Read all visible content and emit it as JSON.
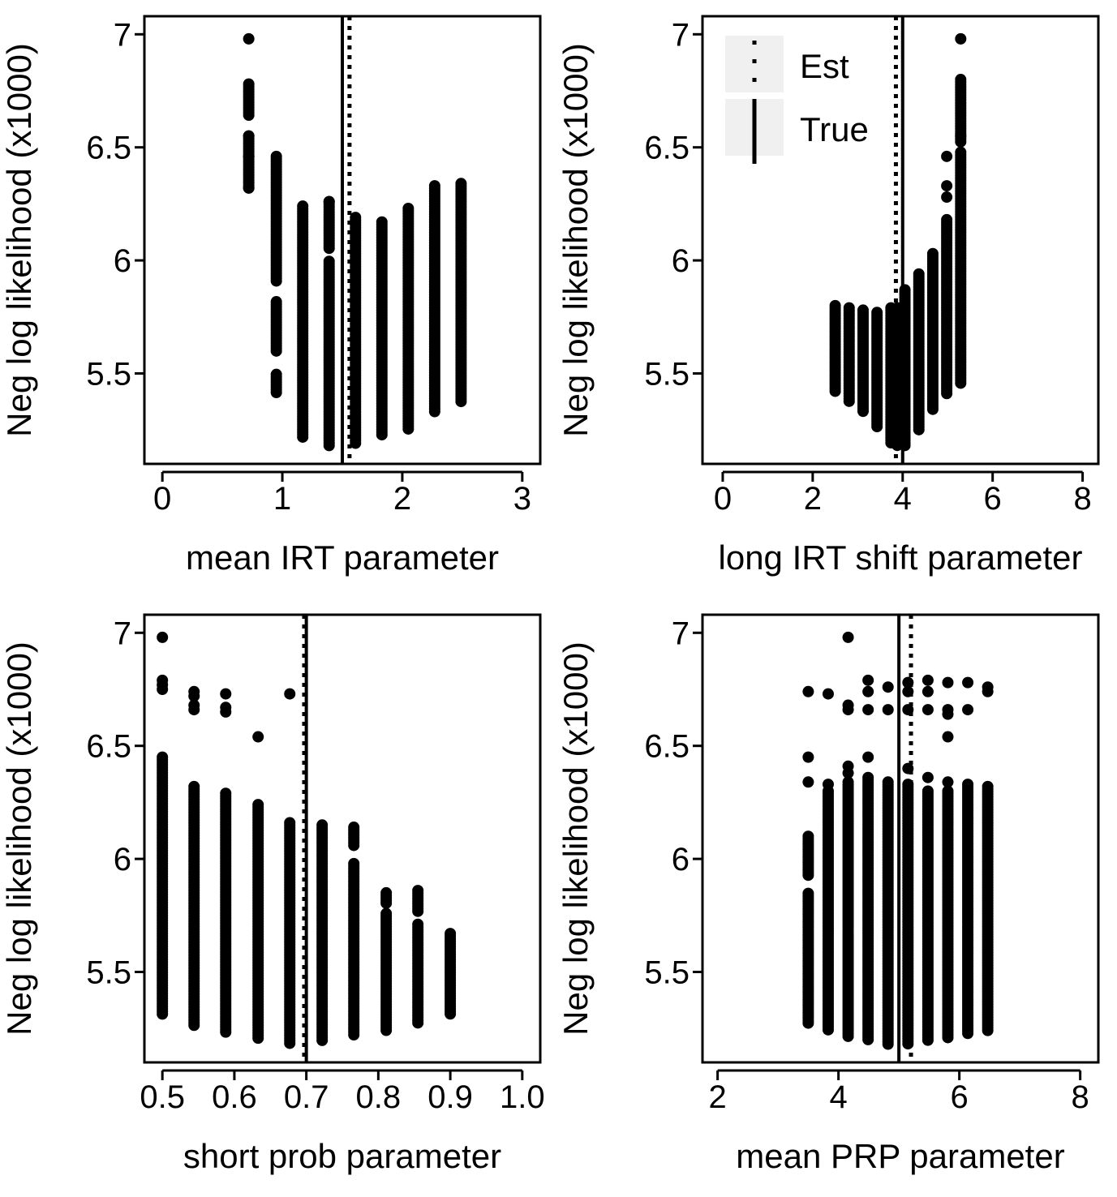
{
  "figure": {
    "background": "#ffffff",
    "ink": "#000000"
  },
  "chart_data": [
    {
      "type": "scatter",
      "xlabel": "mean IRT parameter",
      "ylabel": "Neg log likelihood (x1000)",
      "xlim": [
        -0.15,
        3.15
      ],
      "ylim": [
        5.1,
        7.08
      ],
      "xticks": [
        0,
        1,
        2,
        3
      ],
      "yticks": [
        5.5,
        6,
        6.5,
        7
      ],
      "xtick_labels": [
        "0",
        "1",
        "2",
        "3"
      ],
      "ytick_labels": [
        "5.5",
        "6",
        "6.5",
        "7"
      ],
      "vlines": [
        {
          "name": "True",
          "x": 1.5,
          "style": "solid"
        },
        {
          "name": "Est",
          "x": 1.56,
          "style": "dotted"
        }
      ],
      "columns": [
        {
          "x": 0.72,
          "ymin": 6.32,
          "ymax": 6.78,
          "outliers": [
            6.98,
            6.55,
            6.46,
            6.32
          ],
          "gaps": [
            [
              6.56,
              6.64
            ]
          ]
        },
        {
          "x": 0.95,
          "ymin": 5.41,
          "ymax": 6.46,
          "outliers": [],
          "gaps": [
            [
              5.5,
              5.59
            ],
            [
              5.82,
              5.9
            ]
          ]
        },
        {
          "x": 1.17,
          "ymin": 5.21,
          "ymax": 6.24,
          "outliers": [],
          "gaps": []
        },
        {
          "x": 1.39,
          "ymin": 5.17,
          "ymax": 6.26,
          "outliers": [
            6.26
          ],
          "gaps": [
            [
              6.0,
              6.05
            ]
          ]
        },
        {
          "x": 1.61,
          "ymin": 5.19,
          "ymax": 6.19,
          "outliers": [],
          "gaps": []
        },
        {
          "x": 1.83,
          "ymin": 5.22,
          "ymax": 6.17,
          "outliers": [],
          "gaps": []
        },
        {
          "x": 2.05,
          "ymin": 5.25,
          "ymax": 6.23,
          "outliers": [],
          "gaps": []
        },
        {
          "x": 2.27,
          "ymin": 5.32,
          "ymax": 6.33,
          "outliers": [],
          "gaps": []
        },
        {
          "x": 2.49,
          "ymin": 5.37,
          "ymax": 6.34,
          "outliers": [],
          "gaps": []
        }
      ]
    },
    {
      "type": "scatter",
      "xlabel": "long IRT shift parameter",
      "ylabel": "Neg log likelihood (x1000)",
      "xlim": [
        -0.45,
        8.35
      ],
      "ylim": [
        5.1,
        7.08
      ],
      "xticks": [
        0,
        2,
        4,
        6,
        8
      ],
      "yticks": [
        5.5,
        6,
        6.5,
        7
      ],
      "xtick_labels": [
        "0",
        "2",
        "4",
        "6",
        "8"
      ],
      "ytick_labels": [
        "5.5",
        "6",
        "6.5",
        "7"
      ],
      "vlines": [
        {
          "name": "True",
          "x": 4.0,
          "style": "solid"
        },
        {
          "name": "Est",
          "x": 3.85,
          "style": "dotted"
        }
      ],
      "legend": {
        "position": "top-left",
        "entries": [
          {
            "label": "Est",
            "style": "dotted"
          },
          {
            "label": "True",
            "style": "solid"
          }
        ]
      },
      "columns": [
        {
          "x": 2.5,
          "ymin": 5.41,
          "ymax": 5.8,
          "outliers": [],
          "gaps": []
        },
        {
          "x": 2.81,
          "ymin": 5.37,
          "ymax": 5.79,
          "outliers": [],
          "gaps": []
        },
        {
          "x": 3.12,
          "ymin": 5.33,
          "ymax": 5.78,
          "outliers": [],
          "gaps": []
        },
        {
          "x": 3.43,
          "ymin": 5.26,
          "ymax": 5.77,
          "outliers": [],
          "gaps": []
        },
        {
          "x": 3.74,
          "ymin": 5.19,
          "ymax": 5.79,
          "outliers": [],
          "gaps": []
        },
        {
          "x": 3.88,
          "ymin": 5.18,
          "ymax": 5.79,
          "outliers": [],
          "gaps": []
        },
        {
          "x": 4.05,
          "ymin": 5.17,
          "ymax": 5.87,
          "outliers": [],
          "gaps": []
        },
        {
          "x": 4.36,
          "ymin": 5.24,
          "ymax": 5.94,
          "outliers": [],
          "gaps": []
        },
        {
          "x": 4.67,
          "ymin": 5.33,
          "ymax": 6.03,
          "outliers": [],
          "gaps": []
        },
        {
          "x": 4.98,
          "ymin": 5.4,
          "ymax": 6.18,
          "outliers": [
            6.46,
            6.33,
            6.28
          ],
          "gaps": []
        },
        {
          "x": 5.29,
          "ymin": 5.45,
          "ymax": 6.8,
          "outliers": [
            6.98,
            6.55
          ],
          "gaps": [
            [
              6.48,
              6.52
            ]
          ]
        }
      ]
    },
    {
      "type": "scatter",
      "xlabel": "short prob parameter",
      "ylabel": "Neg log likelihood (x1000)",
      "xlim": [
        0.475,
        1.025
      ],
      "ylim": [
        5.1,
        7.08
      ],
      "xticks": [
        0.5,
        0.6,
        0.7,
        0.8,
        0.9,
        1.0
      ],
      "yticks": [
        5.5,
        6,
        6.5,
        7
      ],
      "xtick_labels": [
        "0.5",
        "0.6",
        "0.7",
        "0.8",
        "0.9",
        "1.0"
      ],
      "ytick_labels": [
        "5.5",
        "6",
        "6.5",
        "7"
      ],
      "vlines": [
        {
          "name": "True",
          "x": 0.7,
          "style": "solid"
        },
        {
          "name": "Est",
          "x": 0.697,
          "style": "dotted"
        }
      ],
      "columns": [
        {
          "x": 0.5,
          "ymin": 5.31,
          "ymax": 6.45,
          "outliers": [
            6.98,
            6.79,
            6.77,
            6.75
          ],
          "gaps": []
        },
        {
          "x": 0.544,
          "ymin": 5.26,
          "ymax": 6.32,
          "outliers": [
            6.74,
            6.72,
            6.68,
            6.66
          ],
          "gaps": []
        },
        {
          "x": 0.588,
          "ymin": 5.23,
          "ymax": 6.29,
          "outliers": [
            6.73,
            6.67,
            6.65
          ],
          "gaps": []
        },
        {
          "x": 0.633,
          "ymin": 5.2,
          "ymax": 6.24,
          "outliers": [
            6.54
          ],
          "gaps": []
        },
        {
          "x": 0.677,
          "ymin": 5.18,
          "ymax": 6.16,
          "outliers": [
            6.73
          ],
          "gaps": []
        },
        {
          "x": 0.722,
          "ymin": 5.19,
          "ymax": 6.15,
          "outliers": [],
          "gaps": []
        },
        {
          "x": 0.766,
          "ymin": 5.22,
          "ymax": 6.14,
          "outliers": [],
          "gaps": [
            [
              5.99,
              6.05
            ]
          ]
        },
        {
          "x": 0.811,
          "ymin": 5.24,
          "ymax": 5.85,
          "outliers": [],
          "gaps": [
            [
              5.76,
              5.8
            ]
          ]
        },
        {
          "x": 0.855,
          "ymin": 5.27,
          "ymax": 5.86,
          "outliers": [],
          "gaps": [
            [
              5.72,
              5.76
            ]
          ]
        },
        {
          "x": 0.9,
          "ymin": 5.31,
          "ymax": 5.67,
          "outliers": [],
          "gaps": []
        }
      ]
    },
    {
      "type": "scatter",
      "xlabel": "mean PRP parameter",
      "ylabel": "Neg log likelihood (x1000)",
      "xlim": [
        1.75,
        8.3
      ],
      "ylim": [
        5.1,
        7.08
      ],
      "xticks": [
        2,
        4,
        6,
        8
      ],
      "yticks": [
        5.5,
        6,
        6.5,
        7
      ],
      "xtick_labels": [
        "2",
        "4",
        "6",
        "8"
      ],
      "ytick_labels": [
        "5.5",
        "6",
        "6.5",
        "7"
      ],
      "vlines": [
        {
          "name": "True",
          "x": 5.0,
          "style": "solid"
        },
        {
          "name": "Est",
          "x": 5.2,
          "style": "dotted"
        }
      ],
      "columns": [
        {
          "x": 3.5,
          "ymin": 5.27,
          "ymax": 6.1,
          "outliers": [
            6.74,
            6.45,
            6.34
          ],
          "gaps": [
            [
              5.85,
              5.92
            ]
          ]
        },
        {
          "x": 3.83,
          "ymin": 5.24,
          "ymax": 6.3,
          "outliers": [
            6.73,
            6.33
          ],
          "gaps": []
        },
        {
          "x": 4.16,
          "ymin": 5.21,
          "ymax": 6.34,
          "outliers": [
            6.98,
            6.68,
            6.66,
            6.41,
            6.38
          ],
          "gaps": []
        },
        {
          "x": 4.49,
          "ymin": 5.19,
          "ymax": 6.36,
          "outliers": [
            6.79,
            6.74,
            6.66,
            6.45
          ],
          "gaps": []
        },
        {
          "x": 4.82,
          "ymin": 5.18,
          "ymax": 6.34,
          "outliers": [
            6.76,
            6.66
          ],
          "gaps": []
        },
        {
          "x": 5.15,
          "ymin": 5.18,
          "ymax": 6.33,
          "outliers": [
            6.78,
            6.74,
            6.66,
            6.4
          ],
          "gaps": []
        },
        {
          "x": 5.48,
          "ymin": 5.19,
          "ymax": 6.3,
          "outliers": [
            6.79,
            6.74,
            6.66,
            6.36
          ],
          "gaps": []
        },
        {
          "x": 5.81,
          "ymin": 5.2,
          "ymax": 6.3,
          "outliers": [
            6.78,
            6.66,
            6.64,
            6.54,
            6.34
          ],
          "gaps": []
        },
        {
          "x": 6.14,
          "ymin": 5.22,
          "ymax": 6.33,
          "outliers": [
            6.78,
            6.66
          ],
          "gaps": []
        },
        {
          "x": 6.47,
          "ymin": 5.24,
          "ymax": 6.32,
          "outliers": [
            6.76,
            6.74
          ],
          "gaps": []
        }
      ]
    }
  ]
}
